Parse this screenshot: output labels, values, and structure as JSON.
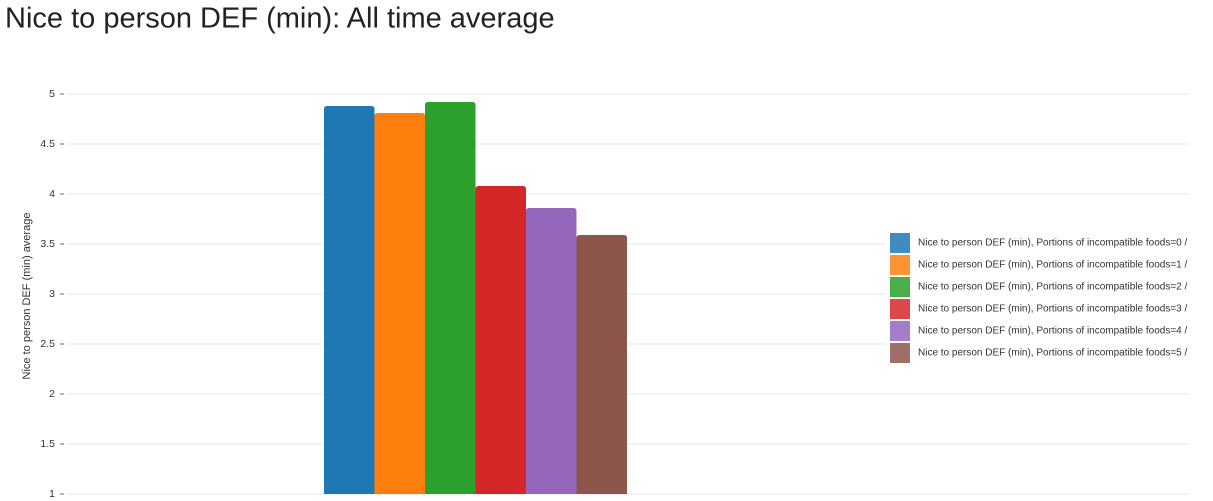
{
  "chart_data": {
    "type": "bar",
    "title": "Nice to person DEF (min): All time average",
    "y_label": "Nice to person DEF (min) average",
    "categories": [
      null
    ],
    "series": [
      {
        "name": "Nice to person DEF (min), Portions of incompatible foods=0 /",
        "color": "#1f77b4",
        "values": [
          4.88
        ]
      },
      {
        "name": "Nice to person DEF (min), Portions of incompatible foods=1 /",
        "color": "#ff7f0e",
        "values": [
          4.81
        ]
      },
      {
        "name": "Nice to person DEF (min), Portions of incompatible foods=2 /",
        "color": "#2ca02c",
        "values": [
          4.92
        ]
      },
      {
        "name": "Nice to person DEF (min), Portions of incompatible foods=3 /",
        "color": "#d62728",
        "values": [
          4.08
        ]
      },
      {
        "name": "Nice to person DEF (min), Portions of incompatible foods=4 /",
        "color": "#9467bd",
        "values": [
          3.86
        ]
      },
      {
        "name": "Nice to person DEF (min), Portions of incompatible foods=5 /",
        "color": "#8c564b",
        "values": [
          3.59
        ]
      }
    ],
    "ylim": [
      1,
      5
    ],
    "yticks": [
      1,
      1.5,
      2,
      2.5,
      3,
      3.5,
      4,
      4.5,
      5
    ],
    "grid": true,
    "legend": "right"
  }
}
